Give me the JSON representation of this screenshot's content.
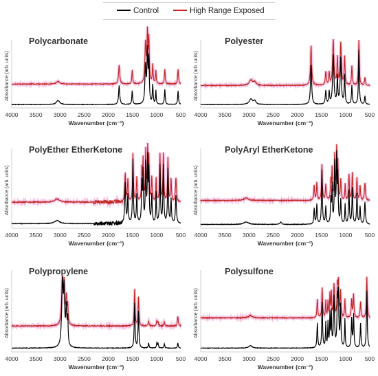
{
  "legend": {
    "control_label": "Control",
    "exposed_label": "High Range Exposed",
    "colors": {
      "control": "#000000",
      "exposed": "#c0251f",
      "exposed_glow": "#ee9bd2"
    }
  },
  "chart_data": [
    {
      "type": "line",
      "title": "Polycarbonate",
      "xlabel": "Wavenumber (cm⁻¹)",
      "ylabel": "Absorbance (arb. units)",
      "xlim": [
        4000,
        500
      ],
      "x_reversed": true,
      "xticks": [
        4000,
        3500,
        3000,
        2500,
        2000,
        1500,
        1000,
        500
      ],
      "baselines": {
        "Control": 0.03,
        "High Range Exposed": 0.33
      },
      "series": [
        {
          "name": "Control",
          "peaks": [
            [
              3040,
              0.06,
              40
            ],
            [
              1775,
              0.28,
              14
            ],
            [
              1505,
              0.2,
              10
            ],
            [
              1230,
              0.55,
              14
            ],
            [
              1190,
              0.75,
              12
            ],
            [
              1160,
              0.62,
              10
            ],
            [
              1080,
              0.28,
              10
            ],
            [
              1015,
              0.2,
              8
            ],
            [
              830,
              0.22,
              10
            ],
            [
              555,
              0.2,
              10
            ]
          ]
        },
        {
          "name": "High Range Exposed",
          "peaks": [
            [
              3040,
              0.04,
              40
            ],
            [
              1775,
              0.28,
              14
            ],
            [
              1505,
              0.2,
              10
            ],
            [
              1230,
              0.58,
              14
            ],
            [
              1190,
              0.72,
              12
            ],
            [
              1160,
              0.62,
              10
            ],
            [
              1080,
              0.28,
              10
            ],
            [
              1015,
              0.2,
              8
            ],
            [
              830,
              0.22,
              10
            ],
            [
              555,
              0.22,
              10
            ]
          ]
        }
      ]
    },
    {
      "type": "line",
      "title": "Polyester",
      "xlabel": "Wavenumber (cm⁻¹)",
      "ylabel": "Absorbance (arb. units)",
      "xlim": [
        4000,
        500
      ],
      "x_reversed": true,
      "xticks": [
        4000,
        3500,
        3000,
        2500,
        2000,
        1500,
        1000,
        500
      ],
      "baselines": {
        "Control": 0.03,
        "High Range Exposed": 0.31
      },
      "series": [
        {
          "name": "Control",
          "peaks": [
            [
              2960,
              0.08,
              40
            ],
            [
              2880,
              0.05,
              30
            ],
            [
              1715,
              0.58,
              14
            ],
            [
              1410,
              0.2,
              12
            ],
            [
              1340,
              0.18,
              10
            ],
            [
              1255,
              0.72,
              16
            ],
            [
              1170,
              0.4,
              10
            ],
            [
              1100,
              0.68,
              14
            ],
            [
              1020,
              0.42,
              10
            ],
            [
              870,
              0.28,
              10
            ],
            [
              725,
              0.8,
              10
            ],
            [
              600,
              0.12,
              10
            ]
          ]
        },
        {
          "name": "High Range Exposed",
          "peaks": [
            [
              2960,
              0.08,
              40
            ],
            [
              2880,
              0.05,
              30
            ],
            [
              1715,
              0.58,
              14
            ],
            [
              1410,
              0.2,
              12
            ],
            [
              1340,
              0.18,
              10
            ],
            [
              1255,
              0.66,
              16
            ],
            [
              1170,
              0.4,
              10
            ],
            [
              1100,
              0.62,
              14
            ],
            [
              1020,
              0.42,
              10
            ],
            [
              870,
              0.28,
              10
            ],
            [
              725,
              0.66,
              10
            ],
            [
              600,
              0.12,
              10
            ]
          ]
        }
      ]
    },
    {
      "type": "line",
      "title": "PolyEther EtherKetone",
      "xlabel": "Wavenumber (cm⁻¹)",
      "ylabel": "Absorbance (arb. units)",
      "xlim": [
        4000,
        500
      ],
      "x_reversed": true,
      "xticks": [
        4000,
        3500,
        3000,
        2500,
        2000,
        1500,
        1000,
        500
      ],
      "baselines": {
        "Control": 0.04,
        "High Range Exposed": 0.31
      },
      "series": [
        {
          "name": "Control",
          "peaks": [
            [
              3060,
              0.04,
              60
            ],
            [
              1650,
              0.5,
              12
            ],
            [
              1595,
              0.35,
              10
            ],
            [
              1490,
              0.8,
              10
            ],
            [
              1410,
              0.35,
              10
            ],
            [
              1305,
              0.5,
              10
            ],
            [
              1280,
              0.6,
              8
            ],
            [
              1225,
              0.72,
              10
            ],
            [
              1185,
              0.78,
              10
            ],
            [
              1160,
              0.6,
              8
            ],
            [
              1100,
              0.35,
              10
            ],
            [
              1010,
              0.38,
              8
            ],
            [
              930,
              0.72,
              10
            ],
            [
              860,
              0.72,
              10
            ],
            [
              765,
              0.68,
              10
            ],
            [
              700,
              0.3,
              10
            ],
            [
              600,
              0.35,
              12
            ]
          ]
        },
        {
          "name": "High Range Exposed",
          "peaks": [
            [
              3060,
              0.04,
              60
            ],
            [
              1650,
              0.36,
              12
            ],
            [
              1595,
              0.28,
              10
            ],
            [
              1490,
              0.6,
              10
            ],
            [
              1410,
              0.3,
              10
            ],
            [
              1305,
              0.4,
              10
            ],
            [
              1280,
              0.5,
              8
            ],
            [
              1225,
              0.62,
              10
            ],
            [
              1185,
              0.65,
              10
            ],
            [
              1160,
              0.5,
              8
            ],
            [
              1100,
              0.3,
              10
            ],
            [
              1010,
              0.3,
              8
            ],
            [
              930,
              0.6,
              10
            ],
            [
              860,
              0.6,
              10
            ],
            [
              765,
              0.55,
              10
            ],
            [
              700,
              0.28,
              10
            ],
            [
              600,
              0.3,
              12
            ]
          ]
        }
      ]
    },
    {
      "type": "line",
      "title": "PolyAryl EtherKetone",
      "xlabel": "Wavenumber (cm⁻¹)",
      "ylabel": "Absorbance (arb. units)",
      "xlim": [
        4000,
        500
      ],
      "x_reversed": true,
      "xticks": [
        4000,
        3500,
        3000,
        2500,
        2000,
        1500,
        1000,
        500
      ],
      "baselines": {
        "Control": 0.03,
        "High Range Exposed": 0.33
      },
      "series": [
        {
          "name": "Control",
          "peaks": [
            [
              3060,
              0.03,
              60
            ],
            [
              2340,
              0.03,
              20
            ],
            [
              1650,
              0.2,
              10
            ],
            [
              1595,
              0.25,
              10
            ],
            [
              1490,
              0.68,
              10
            ],
            [
              1410,
              0.22,
              10
            ],
            [
              1305,
              0.3,
              10
            ],
            [
              1280,
              0.45,
              8
            ],
            [
              1225,
              0.75,
              10
            ],
            [
              1185,
              0.82,
              10
            ],
            [
              1160,
              0.55,
              8
            ],
            [
              1100,
              0.3,
              10
            ],
            [
              1010,
              0.25,
              8
            ],
            [
              930,
              0.42,
              10
            ],
            [
              860,
              0.45,
              10
            ],
            [
              765,
              0.38,
              10
            ],
            [
              700,
              0.22,
              10
            ],
            [
              600,
              0.28,
              12
            ]
          ]
        },
        {
          "name": "High Range Exposed",
          "peaks": [
            [
              3060,
              0.03,
              60
            ],
            [
              1650,
              0.18,
              10
            ],
            [
              1595,
              0.22,
              10
            ],
            [
              1490,
              0.45,
              10
            ],
            [
              1410,
              0.2,
              10
            ],
            [
              1305,
              0.25,
              10
            ],
            [
              1280,
              0.38,
              8
            ],
            [
              1225,
              0.55,
              10
            ],
            [
              1185,
              0.62,
              10
            ],
            [
              1160,
              0.42,
              8
            ],
            [
              1100,
              0.25,
              10
            ],
            [
              1010,
              0.2,
              8
            ],
            [
              930,
              0.32,
              10
            ],
            [
              860,
              0.34,
              10
            ],
            [
              765,
              0.28,
              10
            ],
            [
              700,
              0.18,
              10
            ],
            [
              600,
              0.22,
              12
            ]
          ]
        }
      ]
    },
    {
      "type": "line",
      "title": "Polypropylene",
      "xlabel": "Wavenumber (cm⁻¹)",
      "ylabel": "Absorbance (arb. units)",
      "xlim": [
        4000,
        500
      ],
      "x_reversed": true,
      "xticks": [
        4000,
        3500,
        3000,
        2500,
        2000,
        1500,
        1000,
        500
      ],
      "baselines": {
        "Control": 0.03,
        "High Range Exposed": 0.3
      },
      "series": [
        {
          "name": "Control",
          "peaks": [
            [
              2950,
              0.78,
              18
            ],
            [
              2915,
              0.62,
              14
            ],
            [
              2870,
              0.45,
              14
            ],
            [
              2840,
              0.3,
              10
            ],
            [
              1455,
              0.55,
              10
            ],
            [
              1375,
              0.45,
              10
            ],
            [
              1165,
              0.06,
              10
            ],
            [
              995,
              0.06,
              10
            ],
            [
              970,
              0.05,
              10
            ],
            [
              840,
              0.05,
              10
            ],
            [
              560,
              0.06,
              10
            ]
          ]
        },
        {
          "name": "High Range Exposed",
          "peaks": [
            [
              2950,
              0.55,
              18
            ],
            [
              2915,
              0.45,
              14
            ],
            [
              2870,
              0.32,
              14
            ],
            [
              2840,
              0.22,
              10
            ],
            [
              1455,
              0.45,
              10
            ],
            [
              1375,
              0.35,
              10
            ],
            [
              1165,
              0.06,
              10
            ],
            [
              995,
              0.06,
              10
            ],
            [
              970,
              0.05,
              10
            ],
            [
              840,
              0.05,
              10
            ],
            [
              560,
              0.12,
              10
            ]
          ]
        }
      ]
    },
    {
      "type": "line",
      "title": "Polysulfone",
      "xlabel": "Wavenumber (cm⁻¹)",
      "ylabel": "Absorbance (arb. units)",
      "xlim": [
        4000,
        500
      ],
      "x_reversed": true,
      "xticks": [
        4000,
        3500,
        3000,
        2500,
        2000,
        1500,
        1000,
        500
      ],
      "baselines": {
        "Control": 0.03,
        "High Range Exposed": 0.4
      },
      "series": [
        {
          "name": "Control",
          "peaks": [
            [
              2970,
              0.03,
              40
            ],
            [
              1585,
              0.3,
              10
            ],
            [
              1485,
              0.55,
              10
            ],
            [
              1410,
              0.3,
              8
            ],
            [
              1365,
              0.3,
              8
            ],
            [
              1325,
              0.4,
              8
            ],
            [
              1295,
              0.42,
              8
            ],
            [
              1240,
              0.62,
              12
            ],
            [
              1170,
              0.55,
              10
            ],
            [
              1150,
              0.6,
              10
            ],
            [
              1105,
              0.5,
              10
            ],
            [
              1015,
              0.35,
              8
            ],
            [
              875,
              0.35,
              10
            ],
            [
              835,
              0.4,
              10
            ],
            [
              690,
              0.3,
              10
            ],
            [
              560,
              0.7,
              10
            ]
          ]
        },
        {
          "name": "High Range Exposed",
          "peaks": [
            [
              2970,
              0.03,
              40
            ],
            [
              1585,
              0.22,
              10
            ],
            [
              1485,
              0.36,
              10
            ],
            [
              1410,
              0.2,
              8
            ],
            [
              1365,
              0.2,
              8
            ],
            [
              1325,
              0.28,
              8
            ],
            [
              1295,
              0.3,
              8
            ],
            [
              1240,
              0.4,
              12
            ],
            [
              1170,
              0.36,
              10
            ],
            [
              1150,
              0.4,
              10
            ],
            [
              1105,
              0.32,
              10
            ],
            [
              1015,
              0.22,
              8
            ],
            [
              875,
              0.22,
              10
            ],
            [
              835,
              0.28,
              10
            ],
            [
              690,
              0.2,
              10
            ],
            [
              560,
              0.5,
              10
            ]
          ]
        }
      ]
    }
  ]
}
